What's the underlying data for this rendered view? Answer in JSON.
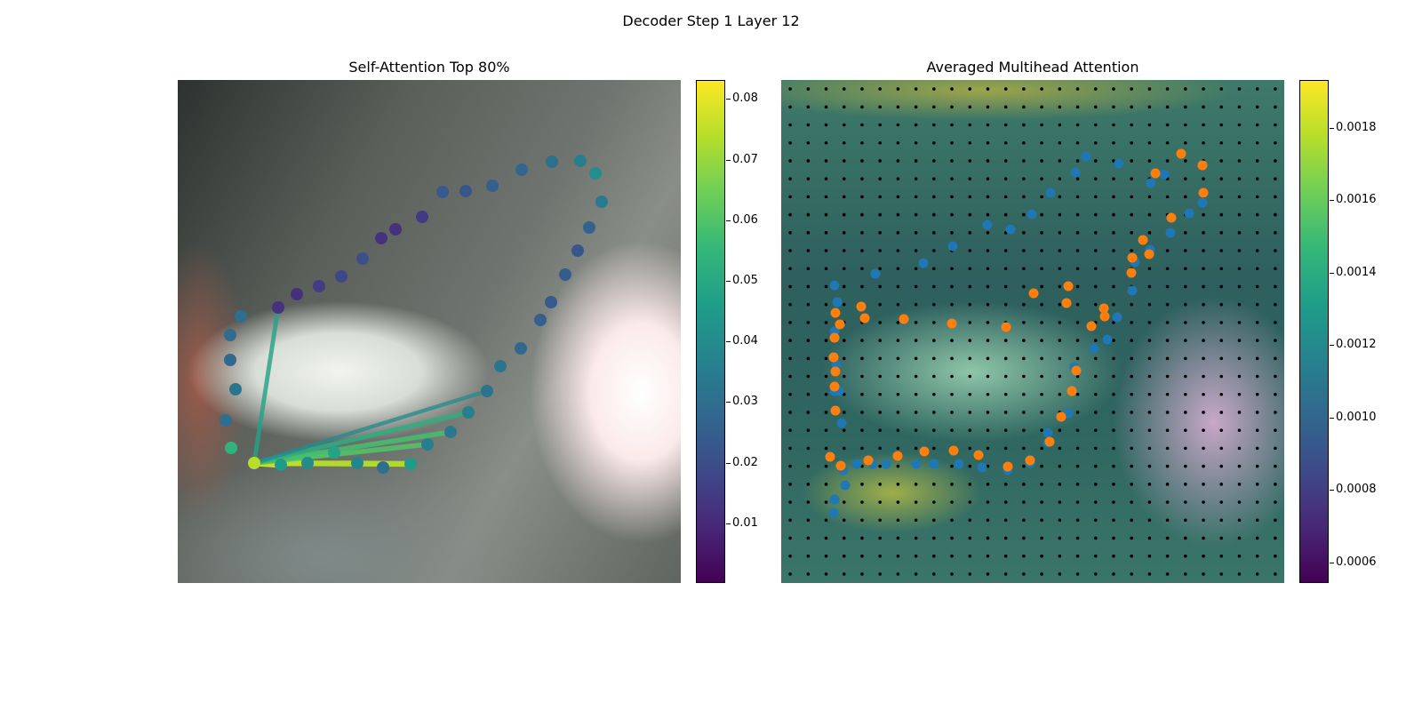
{
  "figure": {
    "suptitle": "Decoder Step 1 Layer 12"
  },
  "colormap": "viridis",
  "colors": {
    "series_a": "#1f77b4",
    "series_b": "#ff7f0e",
    "grid_dot": "#000000"
  },
  "chart_data": [
    {
      "type": "scatter",
      "title": "Self-Attention Top 80%",
      "description_source": "image with point sequence colored by attention weight; lines from query point to top-attended points",
      "xlim": [
        0,
        566
      ],
      "ylim": [
        566,
        0
      ],
      "colorbar": {
        "min": 0.0,
        "max": 0.083,
        "ticks": [
          "0.01",
          "0.02",
          "0.03",
          "0.04",
          "0.05",
          "0.06",
          "0.07",
          "0.08"
        ]
      },
      "query_point": {
        "x": 86,
        "y": 431,
        "value": 0.074
      },
      "points": [
        {
          "x": 86,
          "y": 431,
          "v": 0.074
        },
        {
          "x": 116,
          "y": 433,
          "v": 0.045
        },
        {
          "x": 146,
          "y": 431,
          "v": 0.04
        },
        {
          "x": 176,
          "y": 419,
          "v": 0.048
        },
        {
          "x": 202,
          "y": 431,
          "v": 0.038
        },
        {
          "x": 231,
          "y": 436,
          "v": 0.03
        },
        {
          "x": 262,
          "y": 432,
          "v": 0.045
        },
        {
          "x": 281,
          "y": 410,
          "v": 0.036
        },
        {
          "x": 307,
          "y": 396,
          "v": 0.033
        },
        {
          "x": 327,
          "y": 374,
          "v": 0.036
        },
        {
          "x": 348,
          "y": 350,
          "v": 0.032
        },
        {
          "x": 363,
          "y": 322,
          "v": 0.032
        },
        {
          "x": 386,
          "y": 302,
          "v": 0.028
        },
        {
          "x": 408,
          "y": 270,
          "v": 0.025
        },
        {
          "x": 420,
          "y": 250,
          "v": 0.023
        },
        {
          "x": 436,
          "y": 219,
          "v": 0.024
        },
        {
          "x": 450,
          "y": 192,
          "v": 0.022
        },
        {
          "x": 463,
          "y": 166,
          "v": 0.026
        },
        {
          "x": 477,
          "y": 137,
          "v": 0.034
        },
        {
          "x": 470,
          "y": 105,
          "v": 0.041
        },
        {
          "x": 453,
          "y": 91,
          "v": 0.036
        },
        {
          "x": 421,
          "y": 92,
          "v": 0.03
        },
        {
          "x": 387,
          "y": 101,
          "v": 0.027
        },
        {
          "x": 354,
          "y": 119,
          "v": 0.025
        },
        {
          "x": 324,
          "y": 125,
          "v": 0.022
        },
        {
          "x": 298,
          "y": 126,
          "v": 0.023
        },
        {
          "x": 275,
          "y": 154,
          "v": 0.014
        },
        {
          "x": 245,
          "y": 168,
          "v": 0.012
        },
        {
          "x": 229,
          "y": 178,
          "v": 0.012
        },
        {
          "x": 208,
          "y": 201,
          "v": 0.02
        },
        {
          "x": 184,
          "y": 221,
          "v": 0.018
        },
        {
          "x": 159,
          "y": 232,
          "v": 0.015
        },
        {
          "x": 134,
          "y": 241,
          "v": 0.011
        },
        {
          "x": 113,
          "y": 256,
          "v": 0.012
        },
        {
          "x": 71,
          "y": 266,
          "v": 0.03
        },
        {
          "x": 59,
          "y": 287,
          "v": 0.029
        },
        {
          "x": 59,
          "y": 315,
          "v": 0.028
        },
        {
          "x": 65,
          "y": 348,
          "v": 0.032
        },
        {
          "x": 54,
          "y": 383,
          "v": 0.03
        },
        {
          "x": 60,
          "y": 414,
          "v": 0.054
        }
      ],
      "edges": [
        {
          "to": 1,
          "w": 0.08
        },
        {
          "to": 2,
          "w": 0.078
        },
        {
          "to": 3,
          "w": 0.06
        },
        {
          "to": 6,
          "w": 0.074
        },
        {
          "to": 7,
          "w": 0.06
        },
        {
          "to": 8,
          "w": 0.058
        },
        {
          "to": 9,
          "w": 0.052
        },
        {
          "to": 10,
          "w": 0.04
        },
        {
          "to": 33,
          "w": 0.048
        }
      ]
    },
    {
      "type": "heatmap",
      "title": "Averaged Multihead Attention",
      "xlim": [
        0,
        566
      ],
      "ylim": [
        566,
        0
      ],
      "colorbar": {
        "min": 0.00054,
        "max": 0.00193,
        "ticks": [
          "0.0006",
          "0.0008",
          "0.0010",
          "0.0012",
          "0.0014",
          "0.0016",
          "0.0018"
        ]
      },
      "grid": {
        "rows": 28,
        "cols": 28
      },
      "series": [
        {
          "name": "",
          "color": "#1f77b4",
          "points": [
            [
              60,
              290
            ],
            [
              62,
              320
            ],
            [
              60,
              350
            ],
            [
              65,
              350
            ],
            [
              68,
              386
            ],
            [
              70,
              439
            ],
            [
              72,
              456
            ],
            [
              60,
              472
            ],
            [
              59,
              487
            ],
            [
              85,
              432
            ],
            [
              103,
              432
            ],
            [
              118,
              432
            ],
            [
              152,
              432
            ],
            [
              172,
              432
            ],
            [
              200,
              432
            ],
            [
              226,
              436
            ],
            [
              255,
              439
            ],
            [
              280,
              431
            ],
            [
              300,
              408
            ],
            [
              300,
              397
            ],
            [
              323,
              375
            ],
            [
              330,
              323
            ],
            [
              352,
              302
            ],
            [
              367,
              292
            ],
            [
              378,
              267
            ],
            [
              395,
              237
            ],
            [
              398,
              205
            ],
            [
              415,
              191
            ],
            [
              438,
              172
            ],
            [
              459,
              150
            ],
            [
              474,
              138
            ],
            [
              416,
              116
            ],
            [
              431,
              106
            ],
            [
              380,
              94
            ],
            [
              343,
              86
            ],
            [
              331,
              104
            ],
            [
              303,
              127
            ],
            [
              282,
              151
            ],
            [
              258,
              168
            ],
            [
              232,
              163
            ],
            [
              193,
              187
            ],
            [
              160,
              206
            ],
            [
              106,
              218
            ],
            [
              60,
              231
            ],
            [
              63,
              250
            ],
            [
              60,
              283
            ]
          ]
        },
        {
          "name": "",
          "color": "#ff7f0e",
          "points": [
            [
              55,
              424
            ],
            [
              67,
              434
            ],
            [
              98,
              428
            ],
            [
              131,
              423
            ],
            [
              161,
              418
            ],
            [
              194,
              417
            ],
            [
              222,
              422
            ],
            [
              255,
              435
            ],
            [
              280,
              428
            ],
            [
              302,
              407
            ],
            [
              315,
              379
            ],
            [
              327,
              350
            ],
            [
              332,
              327
            ],
            [
              349,
              277
            ],
            [
              364,
              266
            ],
            [
              395,
              200
            ],
            [
              407,
              180
            ],
            [
              439,
              155
            ],
            [
              475,
              127
            ],
            [
              474,
              96
            ],
            [
              450,
              83
            ],
            [
              421,
              105
            ],
            [
              414,
              196
            ],
            [
              394,
              217
            ],
            [
              363,
              257
            ],
            [
              321,
              251
            ],
            [
              323,
              232
            ],
            [
              284,
              240
            ],
            [
              253,
              278
            ],
            [
              192,
              274
            ],
            [
              138,
              269
            ],
            [
              94,
              268
            ],
            [
              61,
              262
            ],
            [
              60,
              290
            ],
            [
              66,
              275
            ],
            [
              90,
              255
            ],
            [
              59,
              312
            ],
            [
              61,
              328
            ],
            [
              60,
              345
            ],
            [
              61,
              372
            ]
          ]
        }
      ]
    }
  ]
}
